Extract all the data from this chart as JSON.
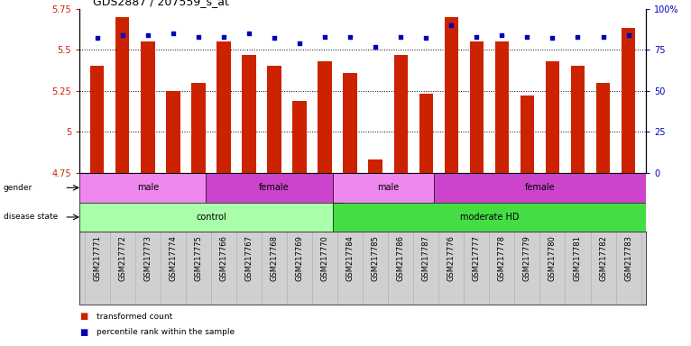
{
  "title": "GDS2887 / 207559_s_at",
  "samples": [
    "GSM217771",
    "GSM217772",
    "GSM217773",
    "GSM217774",
    "GSM217775",
    "GSM217766",
    "GSM217767",
    "GSM217768",
    "GSM217769",
    "GSM217770",
    "GSM217784",
    "GSM217785",
    "GSM217786",
    "GSM217787",
    "GSM217776",
    "GSM217777",
    "GSM217778",
    "GSM217779",
    "GSM217780",
    "GSM217781",
    "GSM217782",
    "GSM217783"
  ],
  "bar_values": [
    5.4,
    5.7,
    5.55,
    5.25,
    5.3,
    5.55,
    5.47,
    5.4,
    5.19,
    5.43,
    5.36,
    4.83,
    5.47,
    5.23,
    5.7,
    5.55,
    5.55,
    5.22,
    5.43,
    5.4,
    5.3,
    5.63
  ],
  "percentile_values": [
    82,
    84,
    84,
    85,
    83,
    83,
    85,
    82,
    79,
    83,
    83,
    77,
    83,
    82,
    90,
    83,
    84,
    83,
    82,
    83,
    83,
    84
  ],
  "ylim_left": [
    4.75,
    5.75
  ],
  "ylim_right": [
    0,
    100
  ],
  "yticks_left": [
    4.75,
    5.0,
    5.25,
    5.5,
    5.75
  ],
  "ytick_labels_left": [
    "4.75",
    "5",
    "5.25",
    "5.5",
    "5.75"
  ],
  "yticks_right": [
    0,
    25,
    50,
    75,
    100
  ],
  "ytick_labels_right": [
    "0",
    "25",
    "50",
    "75",
    "100%"
  ],
  "bar_color": "#cc2200",
  "dot_color": "#0000bb",
  "bg_color": "#ffffff",
  "xtick_bg_color": "#d0d0d0",
  "disease_state_groups": [
    {
      "label": "control",
      "start": 0,
      "end": 10,
      "color": "#aaffaa"
    },
    {
      "label": "moderate HD",
      "start": 10,
      "end": 22,
      "color": "#44dd44"
    }
  ],
  "gender_groups": [
    {
      "label": "male",
      "start": 0,
      "end": 5,
      "color": "#ee88ee"
    },
    {
      "label": "female",
      "start": 5,
      "end": 10,
      "color": "#cc44cc"
    },
    {
      "label": "male",
      "start": 10,
      "end": 14,
      "color": "#ee88ee"
    },
    {
      "label": "female",
      "start": 14,
      "end": 22,
      "color": "#cc44cc"
    }
  ],
  "legend_items": [
    {
      "label": "transformed count",
      "color": "#cc2200"
    },
    {
      "label": "percentile rank within the sample",
      "color": "#0000bb"
    }
  ],
  "title_fontsize": 9,
  "tick_fontsize": 6,
  "bar_fontsize": 6,
  "annot_fontsize": 6.5
}
